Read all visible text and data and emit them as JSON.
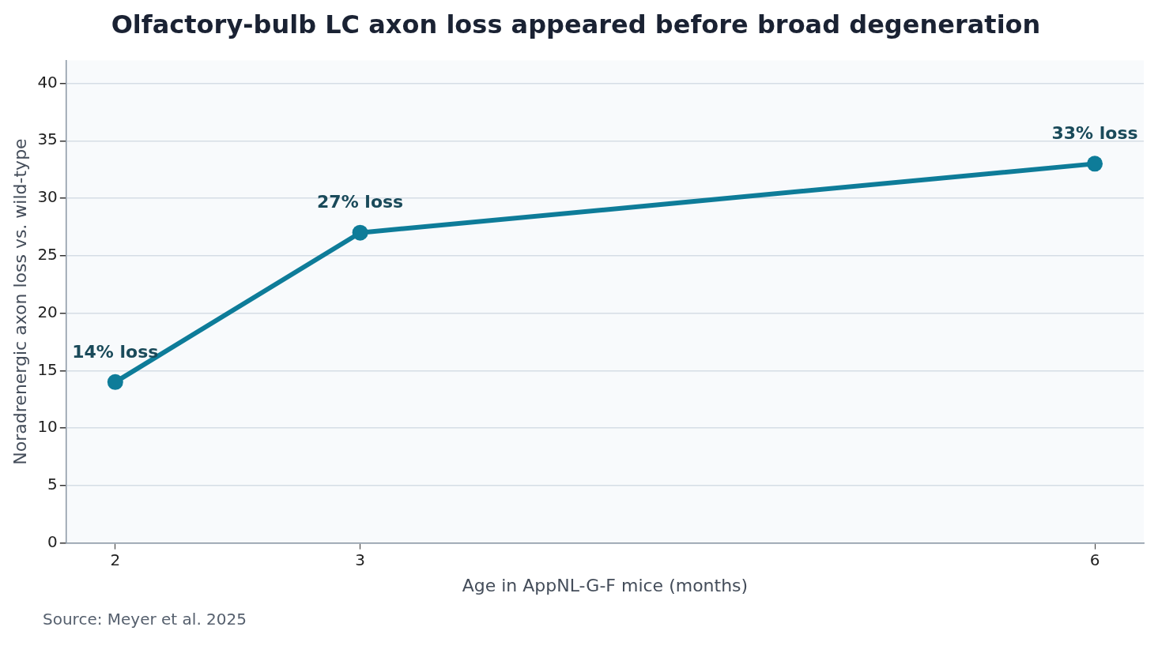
{
  "chart_data": {
    "type": "line",
    "title": "Olfactory-bulb LC axon loss appeared before broad degeneration",
    "xlabel": "Age in AppNL-G-F mice (months)",
    "ylabel": "Noradrenergic axon loss vs. wild-type",
    "x": [
      2,
      3,
      6
    ],
    "series": [
      {
        "color": "#0e7c99",
        "values": [
          14,
          27,
          33
        ],
        "value_labels": [
          "14% loss",
          "27% loss",
          "33% loss"
        ]
      }
    ],
    "xlim": [
      1.8,
      6.2
    ],
    "xticks": [
      2,
      3,
      6
    ],
    "ylim": [
      0,
      42
    ],
    "yticks": [
      0,
      5,
      10,
      15,
      20,
      25,
      30,
      35,
      40
    ],
    "grid": "y",
    "legend": false,
    "marker": "circle",
    "line_style": "solid",
    "annotations": [
      "Source: Meyer et al. 2025"
    ]
  }
}
